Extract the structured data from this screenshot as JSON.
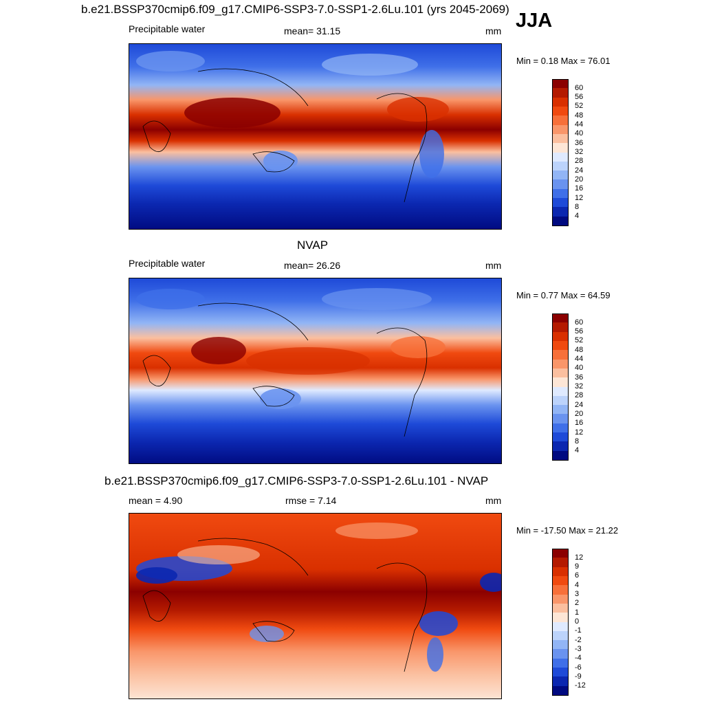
{
  "header": {
    "title": "b.e21.BSSP370cmip6.f09_g17.CMIP6-SSP3-7.0-SSP1-2.6Lu.101 (yrs 2045-2069)",
    "season": "JJA"
  },
  "panels": [
    {
      "id": "model",
      "center_title": "",
      "left_label": "Precipitable water",
      "center_label": "mean=  31.15",
      "right_label": "mm",
      "minmax": "Min =   0.18 Max =  76.01",
      "map": "model"
    },
    {
      "id": "obs",
      "center_title": "NVAP",
      "left_label": "Precipitable water",
      "center_label": "mean=  26.26",
      "right_label": "mm",
      "minmax": "Min =   0.77 Max =  64.59",
      "map": "obs"
    },
    {
      "id": "diff",
      "center_title": "b.e21.BSSP370cmip6.f09_g17.CMIP6-SSP3-7.0-SSP1-2.6Lu.101 - NVAP",
      "left_label": "mean =   4.90",
      "center_label": "rmse =   7.14",
      "right_label": "mm",
      "minmax": "Min = -17.50 Max =  21.22",
      "map": "diff"
    }
  ],
  "legends": {
    "abs": {
      "labels": [
        "60",
        "56",
        "52",
        "48",
        "44",
        "40",
        "36",
        "32",
        "28",
        "24",
        "20",
        "16",
        "12",
        "8",
        "4"
      ],
      "colors": [
        "#8b0000",
        "#b41a00",
        "#d93000",
        "#f04a10",
        "#f7703a",
        "#f9966a",
        "#fbbf9f",
        "#fde6d6",
        "#dfeaff",
        "#bcd3fb",
        "#92b5f5",
        "#6a93ef",
        "#3f6fe8",
        "#1e4ad8",
        "#0b27b0",
        "#000a80"
      ]
    },
    "diff": {
      "labels": [
        "12",
        "9",
        "6",
        "4",
        "3",
        "2",
        "1",
        "0",
        "-1",
        "-2",
        "-3",
        "-4",
        "-6",
        "-9",
        "-12"
      ],
      "colors": [
        "#8b0000",
        "#b41a00",
        "#d93000",
        "#f04a10",
        "#f7703a",
        "#f9966a",
        "#fbbf9f",
        "#fde6d6",
        "#dfeaff",
        "#bcd3fb",
        "#92b5f5",
        "#6a93ef",
        "#3f6fe8",
        "#1e4ad8",
        "#0b27b0",
        "#000a80"
      ]
    }
  }
}
